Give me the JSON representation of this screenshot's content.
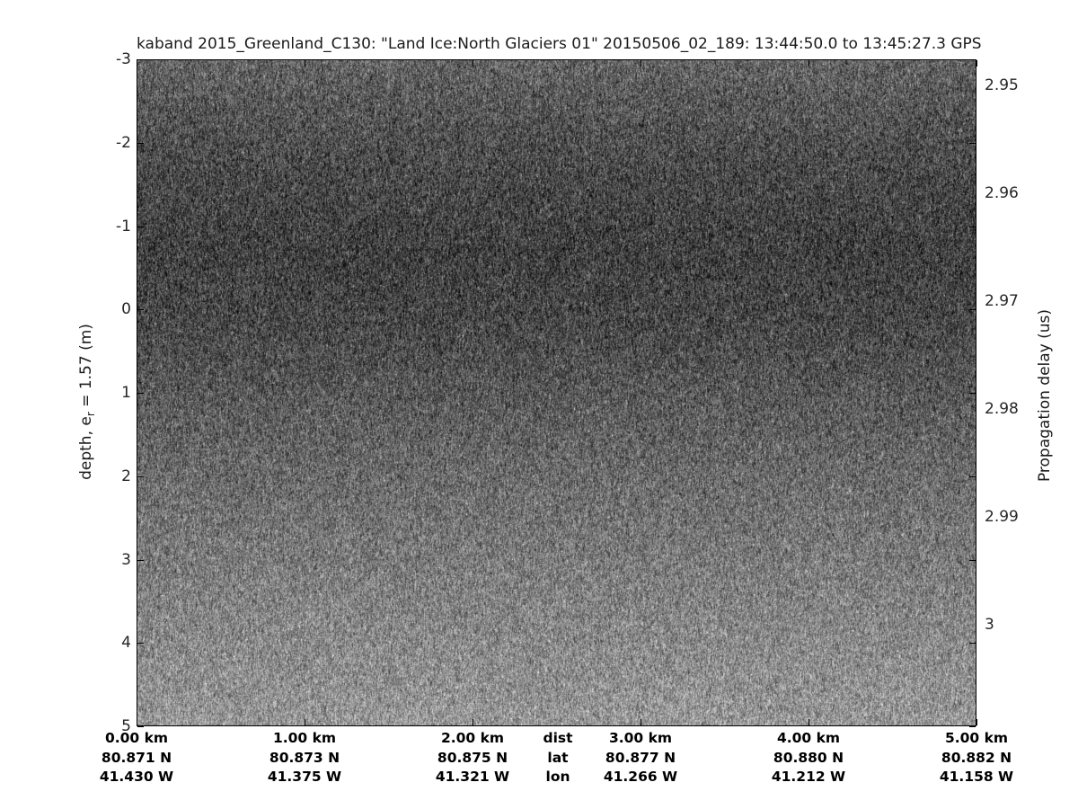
{
  "page": {
    "background": "#ffffff",
    "text_color": "#1a1a1a"
  },
  "chart_data": {
    "type": "heatmap",
    "title": "kaband 2015_Greenland_C130: \"Land Ice:North Glaciers 01\"  20150506_02_189: 13:44:50.0 to 13:45:27.3 GPS",
    "description": "Ka-band radar echogram rendered as grayscale speckle noise with no coherent reflectors; darkest band in upper third of image, gradually brightening toward the bottom",
    "left_axis": {
      "label": "depth, e_r = 1.57 (m)",
      "label_parts": {
        "pre": "depth, e",
        "sub": "r",
        "post": " = 1.57 (m)"
      },
      "ticks": [
        "-3",
        "-2",
        "-1",
        "0",
        "1",
        "2",
        "3",
        "4",
        "5"
      ],
      "range": [
        -3,
        5
      ]
    },
    "right_axis": {
      "label": "Propagation delay (us)",
      "tick_labels": [
        "2.95",
        "2.96",
        "2.97",
        "2.98",
        "2.99",
        "3"
      ]
    },
    "x_axis": {
      "header": {
        "dist": "dist",
        "lat": "lat",
        "lon": "lon"
      },
      "columns": [
        {
          "dist": "0.00 km",
          "lat": "80.871 N",
          "lon": "41.430 W"
        },
        {
          "dist": "1.00 km",
          "lat": "80.873 N",
          "lon": "41.375 W"
        },
        {
          "dist": "2.00 km",
          "lat": "80.875 N",
          "lon": "41.321 W"
        },
        {
          "dist": "3.00 km",
          "lat": "80.877 N",
          "lon": "41.266 W"
        },
        {
          "dist": "4.00 km",
          "lat": "80.880 N",
          "lon": "41.212 W"
        },
        {
          "dist": "5.00 km",
          "lat": "80.882 N",
          "lon": "41.158 W"
        }
      ]
    },
    "noise": {
      "profile_stops": [
        [
          0.0,
          100
        ],
        [
          0.05,
          90
        ],
        [
          0.15,
          75
        ],
        [
          0.28,
          64
        ],
        [
          0.4,
          72
        ],
        [
          0.5,
          88
        ],
        [
          0.6,
          103
        ],
        [
          0.7,
          116
        ],
        [
          0.8,
          128
        ],
        [
          0.9,
          140
        ],
        [
          1.0,
          150
        ]
      ],
      "sigma": 30,
      "speckle_rate": 0.015,
      "speckle_boost": 70
    }
  }
}
